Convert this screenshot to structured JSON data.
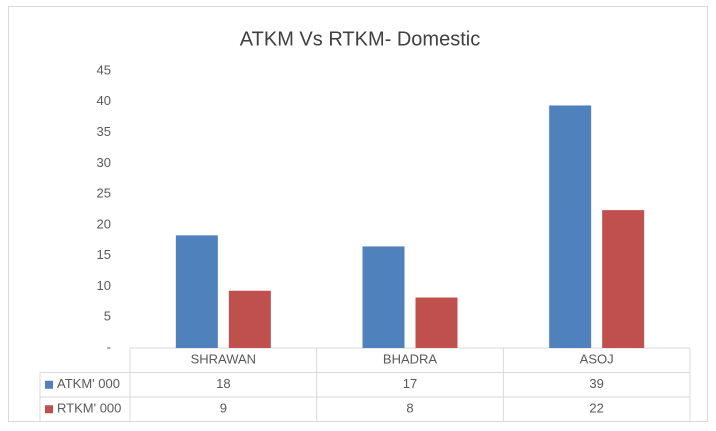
{
  "chart_data": {
    "type": "bar",
    "title": "ATKM Vs RTKM- Domestic",
    "categories": [
      "SHRAWAN",
      "BHADRA",
      "ASOJ"
    ],
    "series": [
      {
        "name": "ATKM' 000",
        "color": "#4f81bd",
        "values": [
          18.3,
          16.5,
          39.4
        ],
        "value_labels": [
          "18",
          "17",
          "39"
        ]
      },
      {
        "name": "RTKM' 000",
        "color": "#c0504d",
        "values": [
          9.3,
          8.2,
          22.4
        ],
        "value_labels": [
          "9",
          "8",
          "22"
        ]
      }
    ],
    "ylim": [
      0,
      45
    ],
    "yticks": [
      {
        "value": 0,
        "label": "-"
      },
      5,
      10,
      15,
      20,
      25,
      30,
      35,
      40,
      45
    ],
    "grid": false
  }
}
